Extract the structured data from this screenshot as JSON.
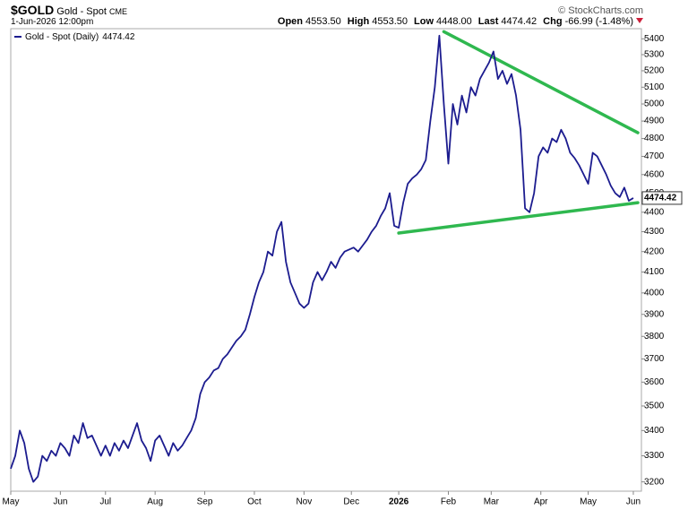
{
  "chart_data": {
    "type": "line",
    "symbol": "$GOLD",
    "name": "Gold - Spot",
    "exchange": "CME",
    "date": "1-Jun-2026 12:00pm",
    "credit": "© StockCharts.com",
    "quote": [
      {
        "label": "Open",
        "value": "4553.50"
      },
      {
        "label": "High",
        "value": "4553.50"
      },
      {
        "label": "Low",
        "value": "4448.00"
      },
      {
        "label": "Last",
        "value": "4474.42"
      },
      {
        "label": "Chg",
        "value": "-66.99 (-1.48%)"
      }
    ],
    "change_color": "#cc1f3a",
    "series": [
      {
        "name": "Gold - Spot (Daily)",
        "color": "#1c1c8f",
        "values": [
          3250,
          3300,
          3400,
          3350,
          3250,
          3200,
          3220,
          3300,
          3280,
          3320,
          3300,
          3350,
          3330,
          3300,
          3380,
          3350,
          3430,
          3370,
          3380,
          3340,
          3300,
          3340,
          3300,
          3350,
          3320,
          3360,
          3330,
          3380,
          3430,
          3360,
          3330,
          3280,
          3360,
          3380,
          3340,
          3300,
          3350,
          3320,
          3340,
          3370,
          3400,
          3450,
          3550,
          3600,
          3620,
          3650,
          3660,
          3700,
          3720,
          3750,
          3780,
          3800,
          3830,
          3900,
          3980,
          4050,
          4100,
          4200,
          4180,
          4300,
          4350,
          4150,
          4050,
          4000,
          3950,
          3930,
          3950,
          4050,
          4100,
          4060,
          4100,
          4150,
          4120,
          4170,
          4200,
          4210,
          4220,
          4200,
          4230,
          4260,
          4300,
          4330,
          4380,
          4420,
          4500,
          4330,
          4320,
          4450,
          4550,
          4580,
          4600,
          4630,
          4680,
          4900,
          5100,
          5420,
          5000,
          4660,
          5000,
          4880,
          5050,
          4950,
          5100,
          5050,
          5150,
          5200,
          5250,
          5320,
          5150,
          5200,
          5120,
          5180,
          5050,
          4850,
          4420,
          4400,
          4500,
          4700,
          4750,
          4720,
          4800,
          4780,
          4850,
          4800,
          4720,
          4690,
          4650,
          4600,
          4550,
          4720,
          4700,
          4650,
          4600,
          4540,
          4500,
          4480,
          4530,
          4460,
          4474.42
        ]
      }
    ],
    "trendlines": [
      {
        "color": "#2fb84f",
        "x": [
          96,
          139
        ],
        "y": [
          5446,
          4833
        ]
      },
      {
        "color": "#2fb84f",
        "x": [
          86,
          139
        ],
        "y": [
          4293,
          4450
        ]
      }
    ],
    "xlim": [
      0,
      139
    ],
    "xticks": [
      {
        "value": 0,
        "label": "May"
      },
      {
        "value": 11,
        "label": "Jun"
      },
      {
        "value": 21,
        "label": "Jul"
      },
      {
        "value": 32,
        "label": "Aug"
      },
      {
        "value": 43,
        "label": "Sep"
      },
      {
        "value": 54,
        "label": "Oct"
      },
      {
        "value": 65,
        "label": "Nov"
      },
      {
        "value": 75.5,
        "label": "Dec"
      },
      {
        "value": 86,
        "label": "2026"
      },
      {
        "value": 97,
        "label": "Feb"
      },
      {
        "value": 106.5,
        "label": "Mar"
      },
      {
        "value": 117.5,
        "label": "Apr"
      },
      {
        "value": 128,
        "label": "May"
      },
      {
        "value": 138,
        "label": "Jun"
      }
    ],
    "ylim": [
      3165,
      5465
    ],
    "log_scale": true,
    "yticks": [
      3200,
      3300,
      3400,
      3500,
      3600,
      3700,
      3800,
      3900,
      4000,
      4100,
      4200,
      4300,
      4400,
      4500,
      4600,
      4700,
      4800,
      4900,
      5000,
      5100,
      5200,
      5300,
      5400
    ]
  }
}
